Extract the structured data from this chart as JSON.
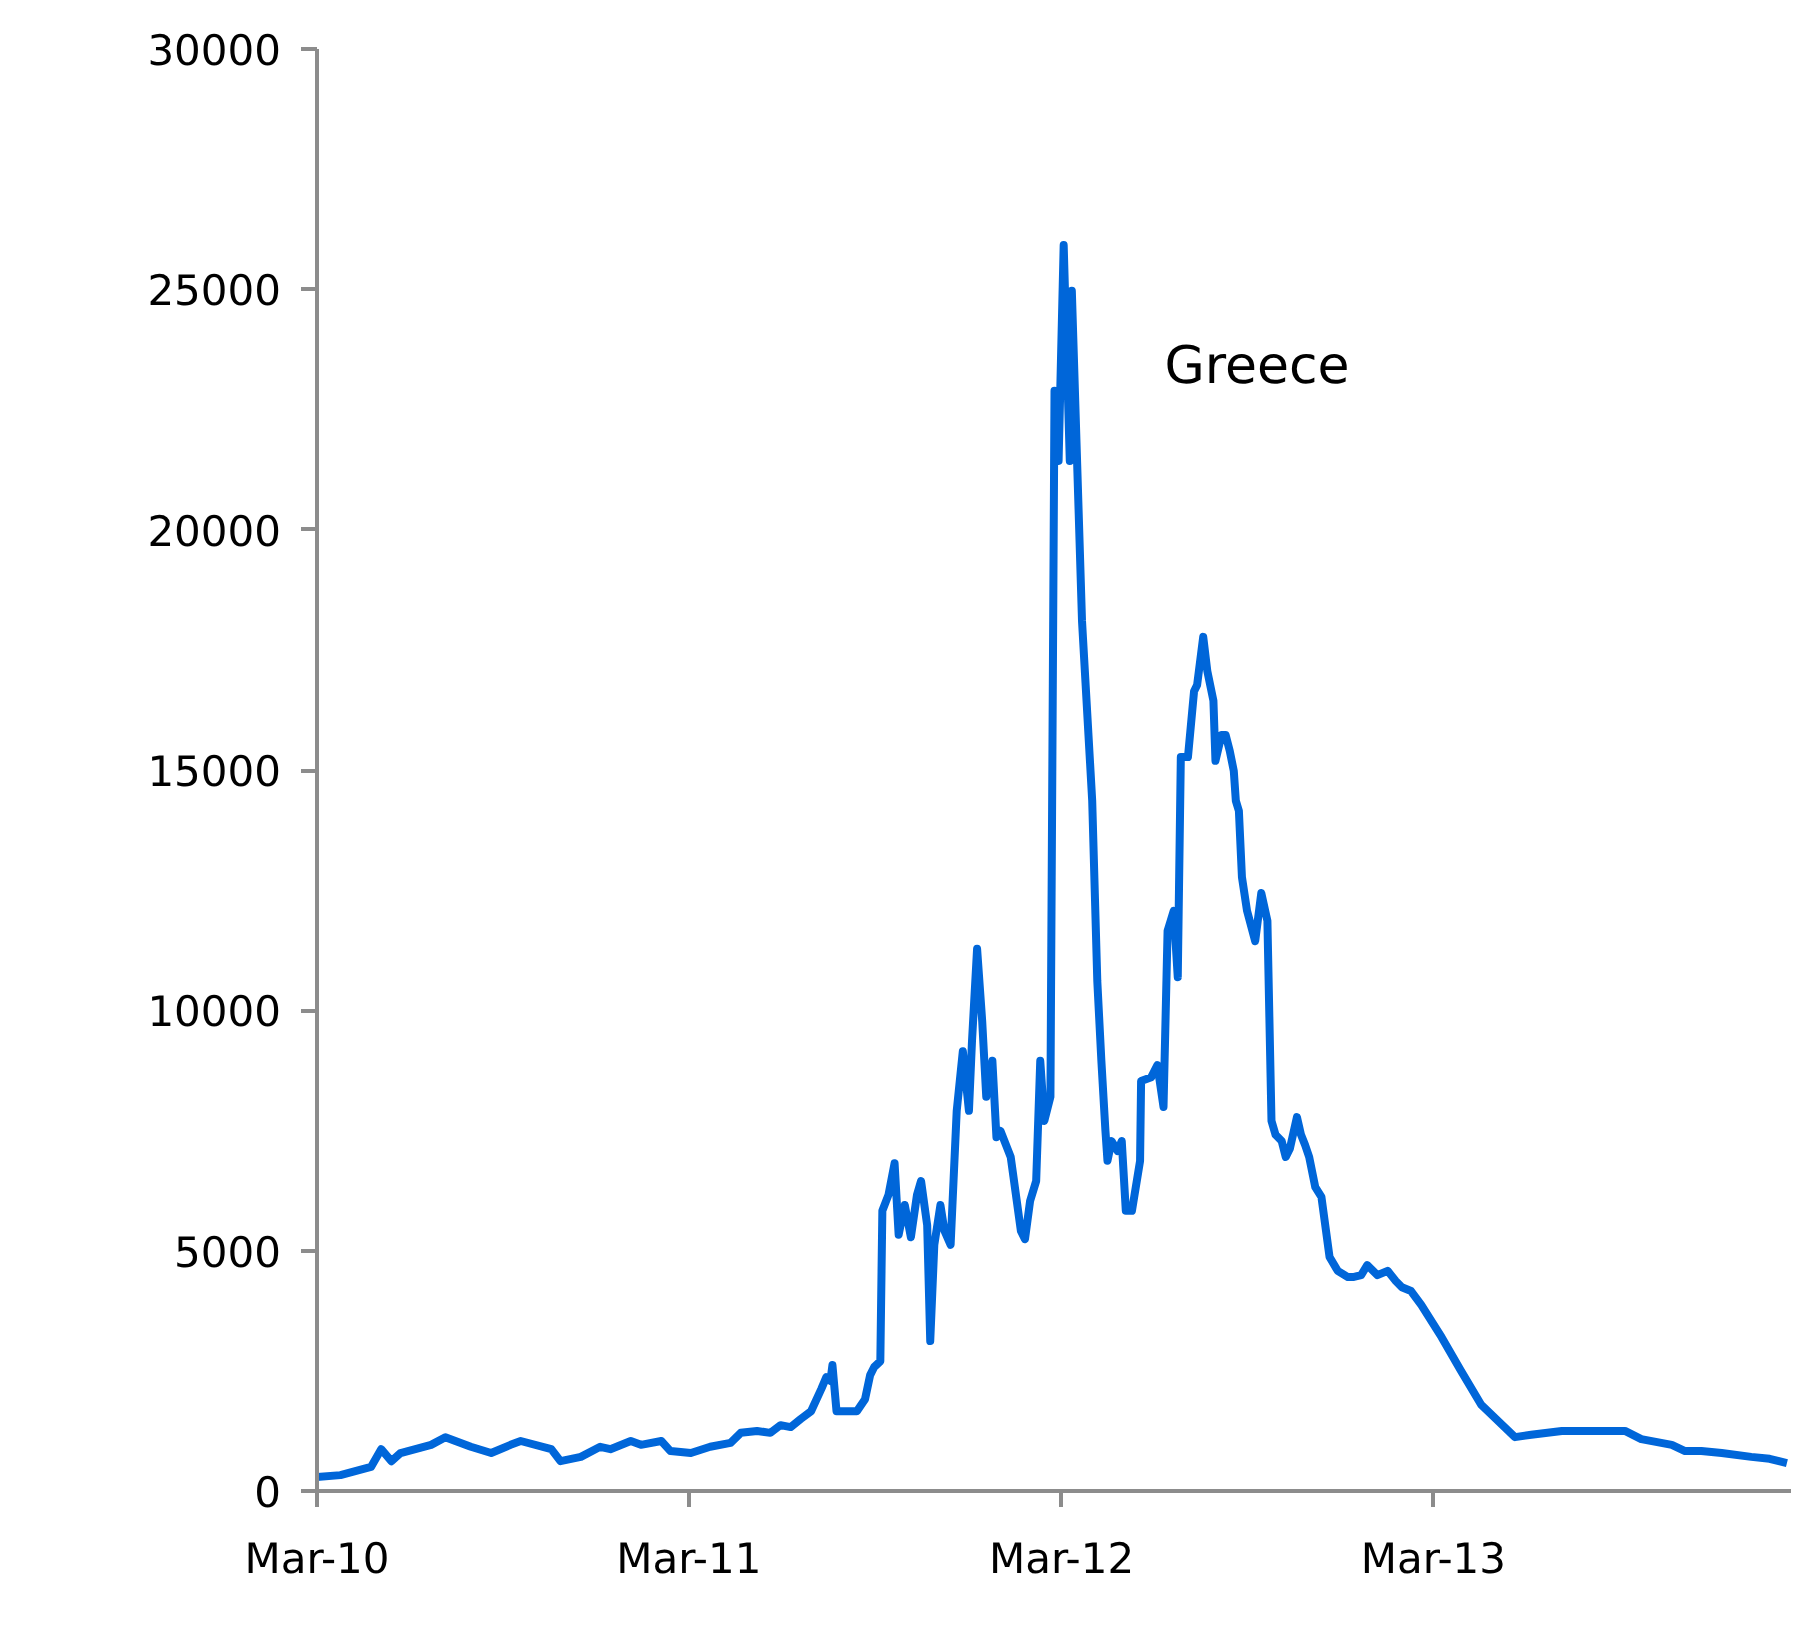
{
  "chart_data": {
    "type": "line",
    "x": [
      "2010-03-01",
      "2010-03-24",
      "2010-04-23",
      "2010-05-03",
      "2010-05-13",
      "2010-05-22",
      "2010-06-21",
      "2010-07-05",
      "2010-07-30",
      "2010-08-19",
      "2010-09-07",
      "2010-09-17",
      "2010-10-17",
      "2010-10-26",
      "2010-11-15",
      "2010-12-04",
      "2010-12-14",
      "2011-01-03",
      "2011-01-13",
      "2011-02-02",
      "2011-02-11",
      "2011-03-03",
      "2011-03-22",
      "2011-04-11",
      "2011-04-21",
      "2011-05-07",
      "2011-05-20",
      "2011-05-30",
      "2011-06-09",
      "2011-06-19",
      "2011-06-29",
      "2011-07-09",
      "2011-07-14",
      "2011-07-18",
      "2011-07-20",
      "2011-07-24",
      "2011-08-01",
      "2011-08-13",
      "2011-08-21",
      "2011-08-26",
      "2011-08-30",
      "2011-09-05",
      "2011-09-07",
      "2011-09-13",
      "2011-09-19",
      "2011-09-23",
      "2011-09-29",
      "2011-10-05",
      "2011-10-11",
      "2011-10-15",
      "2011-10-21",
      "2011-10-24",
      "2011-10-28",
      "2011-11-03",
      "2011-11-07",
      "2011-11-13",
      "2011-11-19",
      "2011-11-25",
      "2011-12-01",
      "2011-12-04",
      "2011-12-09",
      "2011-12-14",
      "2011-12-18",
      "2011-12-24",
      "2011-12-28",
      "2012-01-01",
      "2012-01-11",
      "2012-01-21",
      "2012-01-25",
      "2012-01-30",
      "2012-02-05",
      "2012-02-09",
      "2012-02-13",
      "2012-02-19",
      "2012-02-23",
      "2012-02-27",
      "2012-03-03",
      "2012-03-09",
      "2012-03-11",
      "2012-03-21",
      "2012-03-31",
      "2012-04-05",
      "2012-04-09",
      "2012-04-13",
      "2012-04-15",
      "2012-04-19",
      "2012-04-25",
      "2012-04-29",
      "2012-05-03",
      "2012-05-09",
      "2012-05-17",
      "2012-05-18",
      "2012-05-28",
      "2012-06-03",
      "2012-06-09",
      "2012-06-13",
      "2012-06-19",
      "2012-06-23",
      "2012-06-26",
      "2012-07-03",
      "2012-07-09",
      "2012-07-12",
      "2012-07-18",
      "2012-07-22",
      "2012-07-28",
      "2012-07-30",
      "2012-08-05",
      "2012-08-09",
      "2012-08-13",
      "2012-08-17",
      "2012-08-19",
      "2012-08-22",
      "2012-08-25",
      "2012-08-30",
      "2012-09-07",
      "2012-09-13",
      "2012-09-19",
      "2012-09-23",
      "2012-09-27",
      "2012-10-03",
      "2012-10-07",
      "2012-10-11",
      "2012-10-18",
      "2012-10-22",
      "2012-10-26",
      "2012-10-30",
      "2012-11-05",
      "2012-11-11",
      "2012-11-19",
      "2012-11-27",
      "2012-12-07",
      "2012-12-12",
      "2012-12-20",
      "2012-12-26",
      "2013-01-05",
      "2013-01-15",
      "2013-01-23",
      "2013-01-29",
      "2013-02-07",
      "2013-02-17",
      "2013-03-09",
      "2013-03-28",
      "2013-04-17",
      "2013-05-20",
      "2013-06-05",
      "2013-07-05",
      "2013-08-13",
      "2013-09-05",
      "2013-09-21",
      "2013-10-21",
      "2013-11-03",
      "2013-11-19",
      "2013-12-09",
      "2014-01-07",
      "2014-01-25",
      "2014-02-11"
    ],
    "series": [
      {
        "color": "#0066d9",
        "values": [
          290,
          330,
          500,
          870,
          620,
          790,
          960,
          1120,
          920,
          790,
          960,
          1040,
          870,
          620,
          710,
          920,
          870,
          1040,
          960,
          1040,
          830,
          790,
          920,
          1000,
          1210,
          1250,
          1210,
          1370,
          1330,
          1500,
          1660,
          2120,
          2370,
          2290,
          2620,
          1660,
          1660,
          1660,
          1910,
          2410,
          2580,
          2700,
          5830,
          6160,
          6820,
          5330,
          5950,
          5280,
          6160,
          6450,
          5530,
          3120,
          5120,
          5950,
          5410,
          5120,
          7910,
          9150,
          7910,
          9360,
          11280,
          9780,
          8200,
          8950,
          7360,
          7490,
          6950,
          5410,
          5240,
          6030,
          6450,
          8950,
          7700,
          8200,
          22890,
          21430,
          25920,
          21430,
          24970,
          18100,
          14360,
          10610,
          8950,
          7490,
          6870,
          7280,
          7070,
          7280,
          5830,
          5830,
          6870,
          8530,
          8610,
          8860,
          7990,
          11650,
          12070,
          10690,
          15270,
          15270,
          16640,
          16770,
          17770,
          17060,
          16440,
          15190,
          15730,
          15730,
          15400,
          14980,
          14360,
          14150,
          12770,
          12070,
          11440,
          12440,
          11860,
          7700,
          7410,
          7280,
          6950,
          7120,
          7780,
          7410,
          7200,
          6950,
          6320,
          6120,
          4870,
          4580,
          4450,
          4450,
          4490,
          4700,
          4490,
          4580,
          4370,
          4240,
          4160,
          3870,
          3200,
          2500,
          1790,
          1120,
          1170,
          1250,
          1250,
          1250,
          1080,
          960,
          830,
          830,
          790,
          710,
          670,
          580
        ]
      }
    ],
    "annotations": [
      "Greece"
    ],
    "xlim": [
      "2010-03-01",
      "2014-02-15"
    ],
    "xticks": [
      {
        "value": "2010-03-01",
        "label": "Mar-10"
      },
      {
        "value": "2011-03-01",
        "label": "Mar-11"
      },
      {
        "value": "2012-03-01",
        "label": "Mar-12"
      },
      {
        "value": "2013-03-01",
        "label": "Mar-13"
      }
    ],
    "ylim": [
      0,
      30000
    ],
    "yticks": [
      0,
      5000,
      10000,
      15000,
      20000,
      25000,
      30000
    ],
    "grid": false,
    "marker": "none",
    "line_style": "solid"
  }
}
